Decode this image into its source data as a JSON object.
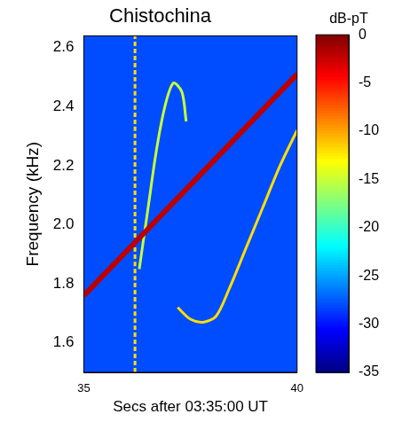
{
  "chart_data": {
    "type": "spectrogram",
    "title": "Chistochina",
    "x_label": "Secs after 03:35:00 UT",
    "y_label": "Frequency (kHz)",
    "xlim": [
      35,
      40
    ],
    "xticks": [
      35,
      40
    ],
    "ylim": [
      1.5,
      2.64
    ],
    "yticks": [
      1.6,
      1.8,
      {
        "value": 2,
        "label": "2.0"
      },
      2.2,
      2.4,
      2.6
    ],
    "grid": false,
    "background_level": -28,
    "series": [
      {
        "x": [
          35,
          36,
          37,
          38,
          39,
          40
        ],
        "values": [
          1.76,
          1.91,
          2.06,
          2.21,
          2.36,
          2.51
        ],
        "level": -2,
        "line_style": "solid"
      },
      {
        "x": [
          36.2,
          36.2
        ],
        "values": [
          1.5,
          2.64
        ],
        "level": -12,
        "line_style": "dashed"
      },
      {
        "x": [
          36.3,
          36.5,
          36.7,
          36.9,
          37.1,
          37.3,
          37.4
        ],
        "values": [
          1.85,
          2.05,
          2.25,
          2.4,
          2.48,
          2.45,
          2.35
        ],
        "level": -15,
        "line_style": "solid"
      },
      {
        "x": [
          37.2,
          37.5,
          37.8,
          38.1,
          38.4,
          38.8,
          39.2,
          39.6,
          40.0
        ],
        "values": [
          1.72,
          1.68,
          1.67,
          1.69,
          1.78,
          1.92,
          2.06,
          2.2,
          2.32
        ],
        "level": -12,
        "line_style": "solid"
      }
    ],
    "colorbar": {
      "label": "dB-pT",
      "range": [
        -35,
        0
      ],
      "ticks": [
        0,
        -5,
        -10,
        -15,
        -20,
        -25,
        -30,
        -35
      ]
    }
  }
}
